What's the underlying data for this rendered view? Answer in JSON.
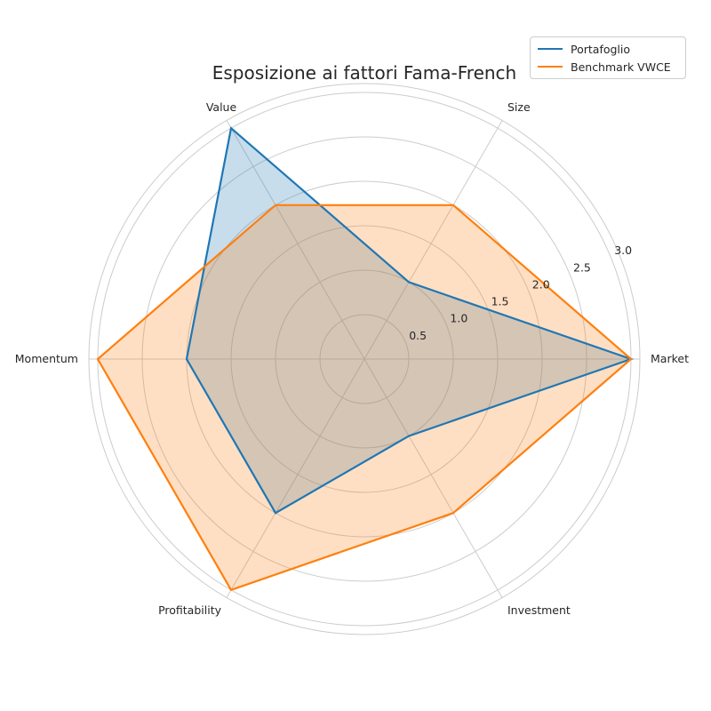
{
  "chart_data": {
    "type": "radar",
    "title": "Esposizione ai fattori Fama-French",
    "axes": [
      "Market",
      "Size",
      "Value",
      "Momentum",
      "Profitability",
      "Investment"
    ],
    "rlim": [
      0,
      3.1
    ],
    "rticks": [
      0.5,
      1.0,
      1.5,
      2.0,
      2.5,
      3.0
    ],
    "rtick_labels": [
      "0.5",
      "1.0",
      "1.5",
      "2.0",
      "2.5",
      "3.0"
    ],
    "grid": true,
    "legend_position": "top-right",
    "series": [
      {
        "name": "Portafoglio",
        "values": [
          3.0,
          1.0,
          3.0,
          2.0,
          2.0,
          1.0
        ],
        "color": "#1f77b4"
      },
      {
        "name": "Benchmark VWCE",
        "values": [
          3.0,
          2.0,
          2.0,
          3.0,
          3.0,
          2.0
        ],
        "color": "#ff7f0e"
      }
    ]
  }
}
